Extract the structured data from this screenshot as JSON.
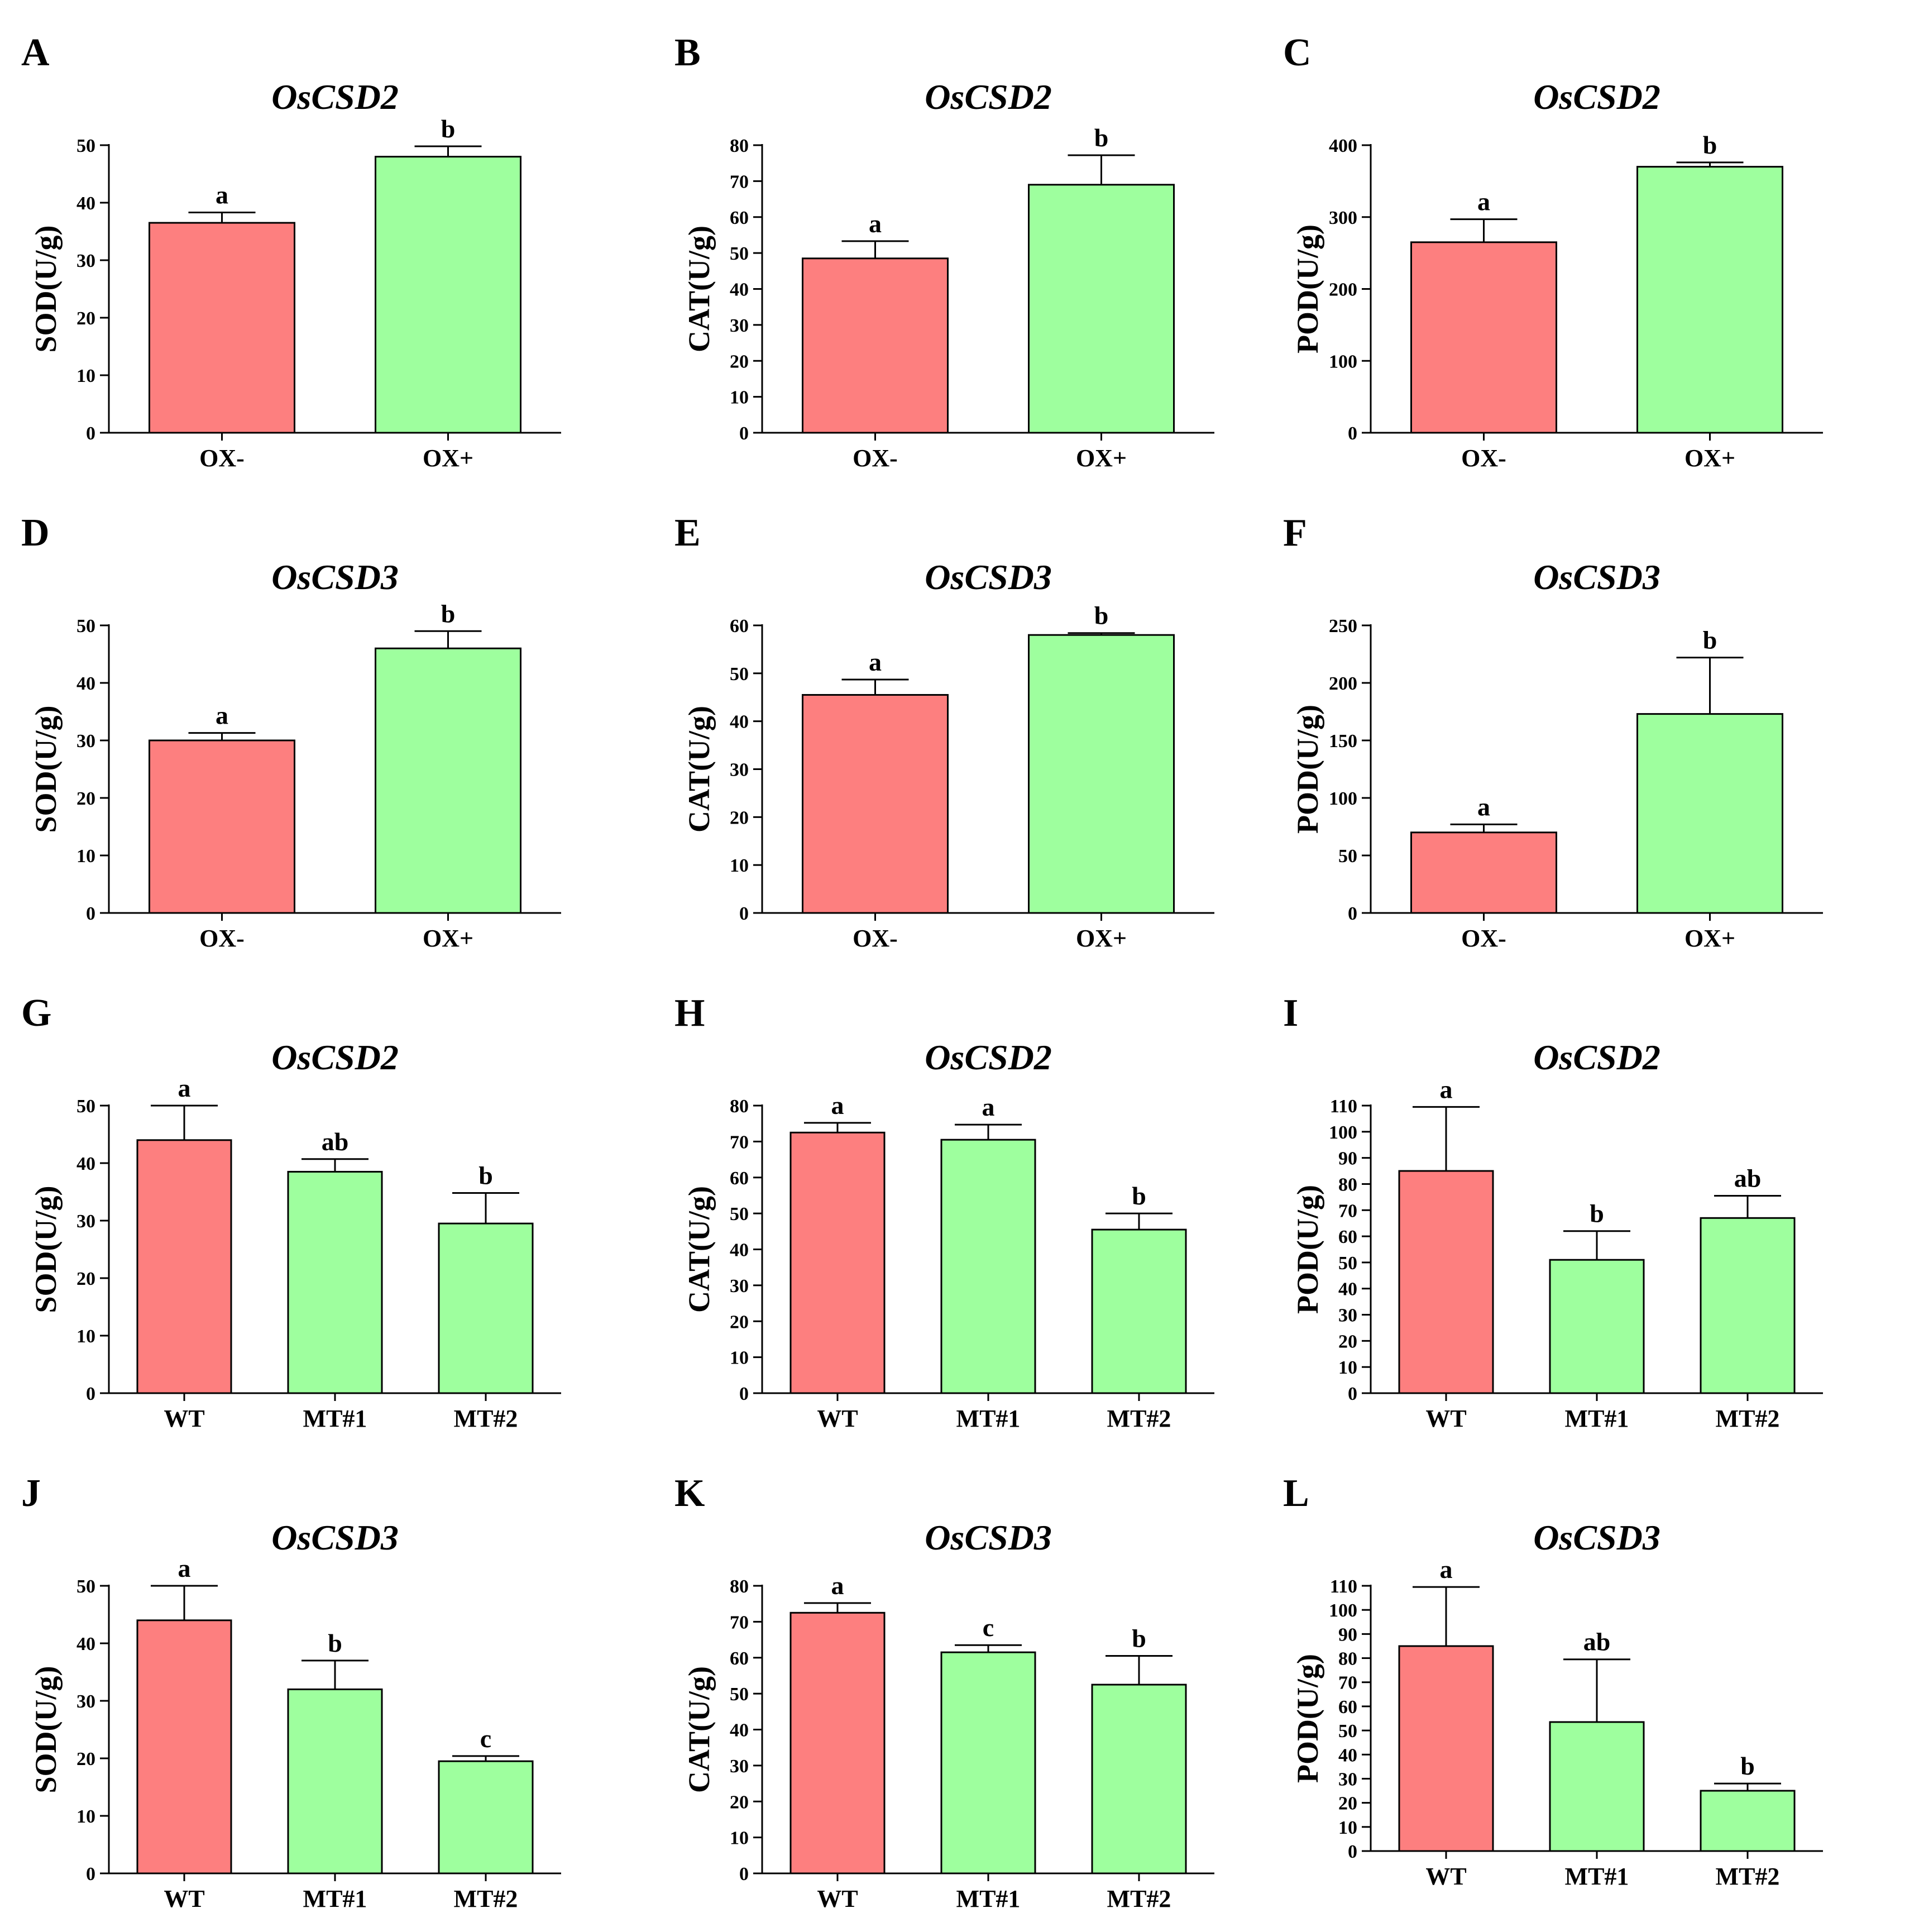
{
  "figure": {
    "colors": {
      "control": "#fd7f7f",
      "treatment": "#9eff9e",
      "axis": "#000000"
    }
  },
  "chart_data": [
    {
      "panel": "A",
      "type": "bar",
      "title": "OsCSD2",
      "ylabel": "SOD(U/g)",
      "xlabel": "",
      "categories": [
        "OX-",
        "OX+"
      ],
      "values": [
        36.5,
        48
      ],
      "errors": [
        1.8,
        1.8
      ],
      "significance": [
        "a",
        "b"
      ],
      "ylim": [
        0,
        50
      ],
      "yticks": [
        0,
        10,
        20,
        30,
        40,
        50
      ]
    },
    {
      "panel": "B",
      "type": "bar",
      "title": "OsCSD2",
      "ylabel": "CAT(U/g)",
      "xlabel": "",
      "categories": [
        "OX-",
        "OX+"
      ],
      "values": [
        48.5,
        69
      ],
      "errors": [
        4.8,
        8.2
      ],
      "significance": [
        "a",
        "b"
      ],
      "ylim": [
        0,
        80
      ],
      "yticks": [
        0,
        10,
        20,
        30,
        40,
        50,
        60,
        70,
        80
      ]
    },
    {
      "panel": "C",
      "type": "bar",
      "title": "OsCSD2",
      "ylabel": "POD(U/g)",
      "xlabel": "",
      "categories": [
        "OX-",
        "OX+"
      ],
      "values": [
        265,
        370
      ],
      "errors": [
        32,
        6
      ],
      "significance": [
        "a",
        "b"
      ],
      "ylim": [
        0,
        400
      ],
      "yticks": [
        0,
        100,
        200,
        300,
        400
      ]
    },
    {
      "panel": "D",
      "type": "bar",
      "title": "OsCSD3",
      "ylabel": "SOD(U/g)",
      "xlabel": "",
      "categories": [
        "OX-",
        "OX+"
      ],
      "values": [
        30,
        46
      ],
      "errors": [
        1.3,
        3
      ],
      "significance": [
        "a",
        "b"
      ],
      "ylim": [
        0,
        50
      ],
      "yticks": [
        0,
        10,
        20,
        30,
        40,
        50
      ]
    },
    {
      "panel": "E",
      "type": "bar",
      "title": "OsCSD3",
      "ylabel": "CAT(U/g)",
      "xlabel": "",
      "categories": [
        "OX-",
        "OX+"
      ],
      "values": [
        45.5,
        58
      ],
      "errors": [
        3.2,
        0.4
      ],
      "significance": [
        "a",
        "b"
      ],
      "ylim": [
        0,
        60
      ],
      "yticks": [
        0,
        10,
        20,
        30,
        40,
        50,
        60
      ]
    },
    {
      "panel": "F",
      "type": "bar",
      "title": "OsCSD3",
      "ylabel": "POD(U/g)",
      "xlabel": "",
      "categories": [
        "OX-",
        "OX+"
      ],
      "values": [
        70,
        173
      ],
      "errors": [
        7,
        49
      ],
      "significance": [
        "a",
        "b"
      ],
      "ylim": [
        0,
        250
      ],
      "yticks": [
        0,
        50,
        100,
        150,
        200,
        250
      ]
    },
    {
      "panel": "G",
      "type": "bar",
      "title": "OsCSD2",
      "ylabel": "SOD(U/g)",
      "xlabel": "",
      "categories": [
        "WT",
        "MT#1",
        "MT#2"
      ],
      "values": [
        44,
        38.5,
        29.5
      ],
      "errors": [
        6,
        2.2,
        5.3
      ],
      "significance": [
        "a",
        "ab",
        "b"
      ],
      "ylim": [
        0,
        50
      ],
      "yticks": [
        0,
        10,
        20,
        30,
        40,
        50
      ]
    },
    {
      "panel": "H",
      "type": "bar",
      "title": "OsCSD2",
      "ylabel": "CAT(U/g)",
      "xlabel": "",
      "categories": [
        "WT",
        "MT#1",
        "MT#2"
      ],
      "values": [
        72.5,
        70.5,
        45.5
      ],
      "errors": [
        2.7,
        4.2,
        4.5
      ],
      "significance": [
        "a",
        "a",
        "b"
      ],
      "ylim": [
        0,
        80
      ],
      "yticks": [
        0,
        10,
        20,
        30,
        40,
        50,
        60,
        70,
        80
      ]
    },
    {
      "panel": "I",
      "type": "bar",
      "title": "OsCSD2",
      "ylabel": "POD(U/g)",
      "xlabel": "",
      "categories": [
        "WT",
        "MT#1",
        "MT#2"
      ],
      "values": [
        85,
        51,
        67
      ],
      "errors": [
        24.5,
        11,
        8.5
      ],
      "significance": [
        "a",
        "b",
        "ab"
      ],
      "ylim": [
        0,
        110
      ],
      "yticks": [
        0,
        10,
        20,
        30,
        40,
        50,
        60,
        70,
        80,
        90,
        100,
        110
      ]
    },
    {
      "panel": "J",
      "type": "bar",
      "title": "OsCSD3",
      "ylabel": "SOD(U/g)",
      "xlabel": "",
      "categories": [
        "WT",
        "MT#1",
        "MT#2"
      ],
      "values": [
        44,
        32,
        19.5
      ],
      "errors": [
        6,
        5,
        0.9
      ],
      "significance": [
        "a",
        "b",
        "c"
      ],
      "ylim": [
        0,
        50
      ],
      "yticks": [
        0,
        10,
        20,
        30,
        40,
        50
      ]
    },
    {
      "panel": "K",
      "type": "bar",
      "title": "OsCSD3",
      "ylabel": "CAT(U/g)",
      "xlabel": "",
      "categories": [
        "WT",
        "MT#1",
        "MT#2"
      ],
      "values": [
        72.5,
        61.5,
        52.5
      ],
      "errors": [
        2.7,
        2,
        8
      ],
      "significance": [
        "a",
        "c",
        "b"
      ],
      "ylim": [
        0,
        80
      ],
      "yticks": [
        0,
        10,
        20,
        30,
        40,
        50,
        60,
        70,
        80
      ]
    },
    {
      "panel": "L",
      "type": "bar",
      "title": "OsCSD3",
      "ylabel": "POD(U/g)",
      "xlabel": "",
      "categories": [
        "WT",
        "MT#1",
        "MT#2"
      ],
      "values": [
        85,
        53.5,
        25
      ],
      "errors": [
        24.5,
        26,
        3
      ],
      "significance": [
        "a",
        "ab",
        "b"
      ],
      "ylim": [
        0,
        110
      ],
      "yticks": [
        0,
        10,
        20,
        30,
        40,
        50,
        60,
        70,
        80,
        90,
        100,
        110
      ]
    }
  ]
}
